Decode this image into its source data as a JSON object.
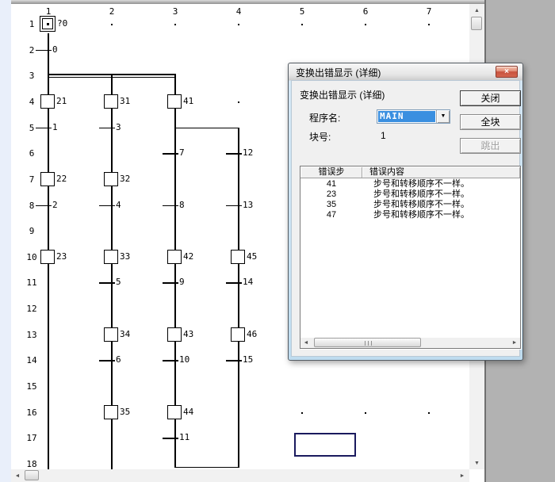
{
  "canvas": {
    "column_headers": [
      "1",
      "2",
      "3",
      "4",
      "5",
      "6",
      "7"
    ],
    "row_headers": [
      "1",
      "2",
      "3",
      "4",
      "5",
      "6",
      "7",
      "8",
      "9",
      "10",
      "11",
      "12",
      "13",
      "14",
      "15",
      "16",
      "17",
      "18"
    ],
    "initial_step": {
      "label": "?0",
      "row": 1,
      "col": 1
    },
    "steps": [
      {
        "label": "21",
        "row": 4,
        "col": 1
      },
      {
        "label": "31",
        "row": 4,
        "col": 2
      },
      {
        "label": "41",
        "row": 4,
        "col": 3
      },
      {
        "label": "22",
        "row": 7,
        "col": 1
      },
      {
        "label": "32",
        "row": 7,
        "col": 2
      },
      {
        "label": "23",
        "row": 10,
        "col": 1
      },
      {
        "label": "33",
        "row": 10,
        "col": 2
      },
      {
        "label": "42",
        "row": 10,
        "col": 3
      },
      {
        "label": "45",
        "row": 10,
        "col": 4
      },
      {
        "label": "34",
        "row": 13,
        "col": 2
      },
      {
        "label": "43",
        "row": 13,
        "col": 3
      },
      {
        "label": "46",
        "row": 13,
        "col": 4
      },
      {
        "label": "35",
        "row": 16,
        "col": 2
      },
      {
        "label": "44",
        "row": 16,
        "col": 3
      }
    ],
    "transitions": [
      {
        "label": "0",
        "row": 2,
        "col": 1
      },
      {
        "label": "1",
        "row": 5,
        "col": 1
      },
      {
        "label": "3",
        "row": 5,
        "col": 2
      },
      {
        "label": "7",
        "row": 6,
        "col": 3
      },
      {
        "label": "12",
        "row": 6,
        "col": 4
      },
      {
        "label": "2",
        "row": 8,
        "col": 1
      },
      {
        "label": "4",
        "row": 8,
        "col": 2
      },
      {
        "label": "8",
        "row": 8,
        "col": 3
      },
      {
        "label": "13",
        "row": 8,
        "col": 4
      },
      {
        "label": "5",
        "row": 11,
        "col": 2
      },
      {
        "label": "9",
        "row": 11,
        "col": 3
      },
      {
        "label": "14",
        "row": 11,
        "col": 4
      },
      {
        "label": "6",
        "row": 14,
        "col": 2
      },
      {
        "label": "10",
        "row": 14,
        "col": 3
      },
      {
        "label": "15",
        "row": 14,
        "col": 4
      },
      {
        "label": "11",
        "row": 17,
        "col": 3
      }
    ],
    "dots": [
      {
        "row": 1,
        "col": 2
      },
      {
        "row": 1,
        "col": 3
      },
      {
        "row": 1,
        "col": 4
      },
      {
        "row": 1,
        "col": 5
      },
      {
        "row": 1,
        "col": 6
      },
      {
        "row": 1,
        "col": 7
      },
      {
        "row": 4,
        "col": 4
      },
      {
        "row": 16,
        "col": 5
      },
      {
        "row": 16,
        "col": 6
      },
      {
        "row": 16,
        "col": 7
      }
    ],
    "lines": {
      "vertical": [
        {
          "col": 1,
          "from": 1.35,
          "to": 18.3
        },
        {
          "col": 2,
          "from": 2.97,
          "to": 18.3
        },
        {
          "col": 3,
          "from": 2.97,
          "to": 18.1
        },
        {
          "col": 4,
          "from": 5.0,
          "to": 18.1
        }
      ],
      "horizontal": [
        {
          "row": 2.97,
          "from_col": 1,
          "to_col": 3,
          "double": true
        },
        {
          "row": 5.0,
          "from_col": 3,
          "to_col": 4,
          "double": false
        },
        {
          "row": 18.1,
          "from_col": 3,
          "to_col": 4,
          "double": false
        }
      ]
    }
  },
  "dialog": {
    "title": "变换出错显示 (详细)",
    "close_glyph": "×",
    "heading": "变换出错显示 (详细)",
    "program_label": "程序名:",
    "program_value": "MAIN",
    "block_label": "块号:",
    "block_value": "1",
    "buttons": {
      "close": "关闭",
      "all_blocks": "全块",
      "jump": "跳出"
    },
    "table": {
      "headers": [
        "错误步",
        "错误内容"
      ],
      "rows": [
        {
          "step": "41",
          "content": "步号和转移顺序不一样。"
        },
        {
          "step": "23",
          "content": "步号和转移顺序不一样。"
        },
        {
          "step": "35",
          "content": "步号和转移顺序不一样。"
        },
        {
          "step": "47",
          "content": "步号和转移顺序不一样。"
        }
      ]
    }
  },
  "colors": {
    "selection_blue": "#3a8fe0",
    "close_button_red": "#c8523d",
    "cursor_navy": "#1a1a5e",
    "app_background": "#b2b2b2"
  },
  "scrollbar_glyphs": {
    "up": "▲",
    "down": "▼",
    "left": "◄",
    "right": "►",
    "combo_down": "▼"
  }
}
